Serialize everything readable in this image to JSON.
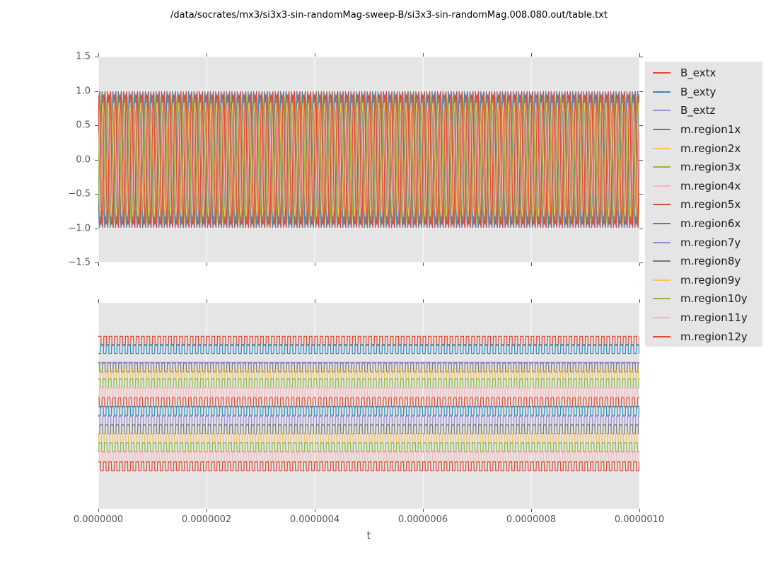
{
  "title": "/data/socrates/mx3/si3x3-sin-randomMag-sweep-B/si3x3-sin-randomMag.008.080.out/table.txt",
  "x_axis": {
    "label": "t",
    "tick_labels": [
      "0.0000000",
      "0.0000002",
      "0.0000004",
      "0.0000006",
      "0.0000008",
      "0.0000010"
    ]
  },
  "top_y_axis": {
    "tick_labels": [
      "1.5",
      "1.0",
      "0.5",
      "0.0",
      "−0.5",
      "−1.0",
      "−1.5"
    ]
  },
  "palette": {
    "red": "#E24A33",
    "blue": "#348ABD",
    "purple": "#988ED5",
    "gray": "#777777",
    "orange": "#FBC15E",
    "green": "#8EBA42",
    "pink": "#FFB5B8",
    "axes_background": "#E5E5E5",
    "gridline": "#FFFFFF",
    "tick_color": "#555555",
    "legend_background": "#E5E5E5"
  },
  "legend": {
    "entries": [
      {
        "label": "B_extx",
        "color": "#E24A33"
      },
      {
        "label": "B_exty",
        "color": "#348ABD"
      },
      {
        "label": "B_extz",
        "color": "#988ED5"
      },
      {
        "label": "m.region1x",
        "color": "#777777"
      },
      {
        "label": "m.region2x",
        "color": "#FBC15E"
      },
      {
        "label": "m.region3x",
        "color": "#8EBA42"
      },
      {
        "label": "m.region4x",
        "color": "#FFB5B8"
      },
      {
        "label": "m.region5x",
        "color": "#E24A33"
      },
      {
        "label": "m.region6x",
        "color": "#348ABD"
      },
      {
        "label": "m.region7y",
        "color": "#988ED5"
      },
      {
        "label": "m.region8y",
        "color": "#777777"
      },
      {
        "label": "m.region9y",
        "color": "#FBC15E"
      },
      {
        "label": "m.region10y",
        "color": "#8EBA42"
      },
      {
        "label": "m.region11y",
        "color": "#FFB5B8"
      },
      {
        "label": "m.region12y",
        "color": "#E24A33"
      }
    ]
  },
  "chart_data": [
    {
      "type": "line",
      "subplot": "top",
      "title": "",
      "xlabel": "t",
      "ylabel": "",
      "xlim": [
        0,
        1e-06
      ],
      "ylim": [
        -1.5,
        1.5
      ],
      "xticks": [
        0,
        2e-07,
        4e-07,
        6e-07,
        8e-07,
        1e-06
      ],
      "yticks": [
        1.5,
        1.0,
        0.5,
        0.0,
        -0.5,
        -1.0,
        -1.5
      ],
      "grid": true,
      "legend_position": "right",
      "cycles": 100,
      "frequency_hz": 100000000.0,
      "series": [
        {
          "name": "B_extx",
          "color": "#E24A33",
          "waveform": "sine",
          "amplitude": 1.0,
          "phase": 0.0,
          "mean": 0
        },
        {
          "name": "B_exty",
          "color": "#348ABD",
          "waveform": "sine",
          "amplitude": 1.0,
          "phase": 0.55,
          "mean": 0
        },
        {
          "name": "B_extz",
          "color": "#988ED5",
          "waveform": "flat",
          "amplitude": 0.0,
          "phase": 0.0,
          "mean": 0
        },
        {
          "name": "m.region1x",
          "color": "#777777",
          "waveform": "sine",
          "amplitude": 0.93,
          "phase": 0.25,
          "mean": 0
        },
        {
          "name": "m.region2x",
          "color": "#FBC15E",
          "waveform": "sine",
          "amplitude": 0.8,
          "phase": 0.62,
          "mean": 0
        },
        {
          "name": "m.region3x",
          "color": "#8EBA42",
          "waveform": "sine",
          "amplitude": 0.88,
          "phase": 0.12,
          "mean": 0
        },
        {
          "name": "m.region4x",
          "color": "#FFB5B8",
          "waveform": "sine",
          "amplitude": 0.74,
          "phase": 0.8,
          "mean": 0
        },
        {
          "name": "m.region5x",
          "color": "#E24A33",
          "waveform": "sine",
          "amplitude": 0.95,
          "phase": 0.33,
          "mean": 0
        },
        {
          "name": "m.region6x",
          "color": "#348ABD",
          "waveform": "sine",
          "amplitude": 0.85,
          "phase": 0.57,
          "mean": 0
        },
        {
          "name": "m.region7y",
          "color": "#988ED5",
          "waveform": "sine",
          "amplitude": 0.9,
          "phase": 0.18,
          "mean": 0
        },
        {
          "name": "m.region8y",
          "color": "#777777",
          "waveform": "sine",
          "amplitude": 0.78,
          "phase": 0.72,
          "mean": 0
        },
        {
          "name": "m.region9y",
          "color": "#FBC15E",
          "waveform": "sine",
          "amplitude": 0.83,
          "phase": 0.42,
          "mean": 0
        },
        {
          "name": "m.region10y",
          "color": "#8EBA42",
          "waveform": "sine",
          "amplitude": 0.92,
          "phase": 0.88,
          "mean": 0
        },
        {
          "name": "m.region11y",
          "color": "#FFB5B8",
          "waveform": "sine",
          "amplitude": 0.75,
          "phase": 0.22,
          "mean": 0
        },
        {
          "name": "m.region12y",
          "color": "#E24A33",
          "waveform": "sine",
          "amplitude": 0.97,
          "phase": 0.07,
          "mean": 0
        }
      ]
    },
    {
      "type": "line",
      "subplot": "bottom",
      "title": "",
      "xlabel": "t",
      "ylabel": "",
      "xlim": [
        0,
        1e-06
      ],
      "xticks": [
        0,
        2e-07,
        4e-07,
        6e-07,
        8e-07,
        1e-06
      ],
      "yticks": [],
      "grid": "vertical-only",
      "cycles": 100,
      "amplitude_fraction": 0.0217,
      "note": "each trace is a square wave offset vertically in legend order; B_extz is a flat line",
      "series": [
        {
          "name": "B_extx",
          "color": "#E24A33",
          "waveform": "square",
          "level_fraction": 0.1845,
          "phase": 0.0
        },
        {
          "name": "B_exty",
          "color": "#348ABD",
          "waveform": "square",
          "level_fraction": 0.2244,
          "phase": 0.55
        },
        {
          "name": "B_extz",
          "color": "#988ED5",
          "waveform": "flat",
          "level_fraction": 0.2897,
          "phase": 0.0
        },
        {
          "name": "m.region1x",
          "color": "#777777",
          "waveform": "square",
          "level_fraction": 0.3144,
          "phase": 0.25
        },
        {
          "name": "m.region2x",
          "color": "#FBC15E",
          "waveform": "square",
          "level_fraction": 0.3505,
          "phase": 0.62
        },
        {
          "name": "m.region3x",
          "color": "#8EBA42",
          "waveform": "square",
          "level_fraction": 0.3911,
          "phase": 0.12
        },
        {
          "name": "m.region4x",
          "color": "#FFB5B8",
          "waveform": "square",
          "level_fraction": 0.4341,
          "phase": 0.8
        },
        {
          "name": "m.region5x",
          "color": "#E24A33",
          "waveform": "square",
          "level_fraction": 0.4835,
          "phase": 0.33
        },
        {
          "name": "m.region6x",
          "color": "#348ABD",
          "waveform": "square",
          "level_fraction": 0.5251,
          "phase": 0.57
        },
        {
          "name": "m.region7y",
          "color": "#988ED5",
          "waveform": "square",
          "level_fraction": 0.5729,
          "phase": 0.18
        },
        {
          "name": "m.region8y",
          "color": "#777777",
          "waveform": "square",
          "level_fraction": 0.6141,
          "phase": 0.72
        },
        {
          "name": "m.region9y",
          "color": "#FBC15E",
          "waveform": "square",
          "level_fraction": 0.6588,
          "phase": 0.42
        },
        {
          "name": "m.region10y",
          "color": "#8EBA42",
          "waveform": "square",
          "level_fraction": 0.7018,
          "phase": 0.88
        },
        {
          "name": "m.region11y",
          "color": "#FFB5B8",
          "waveform": "square",
          "level_fraction": 0.7485,
          "phase": 0.22
        },
        {
          "name": "m.region12y",
          "color": "#E24A33",
          "waveform": "square",
          "level_fraction": 0.7945,
          "phase": 0.07
        }
      ]
    }
  ]
}
